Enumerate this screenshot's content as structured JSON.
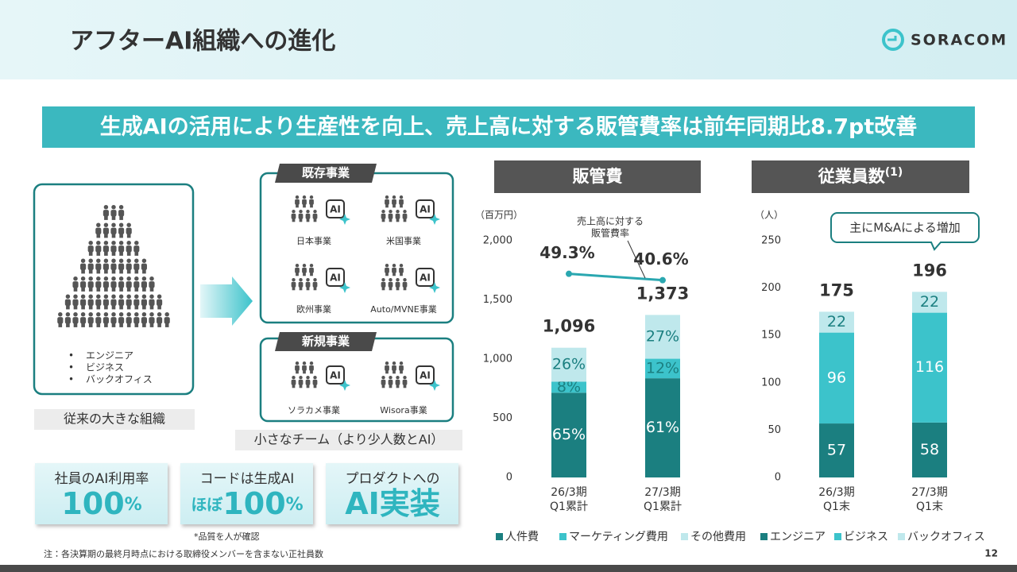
{
  "header": {
    "title": "アフターAI組織への進化",
    "logo": "SORACOM"
  },
  "banner": "生成AIの活用により生産性を向上、売上高に対する販管費率は前年同期比8.7pt改善",
  "legacy_org": {
    "bullets": [
      "エンジニア",
      "ビジネス",
      "バックオフィス"
    ],
    "caption": "従来の大きな組織"
  },
  "new_org": {
    "ai_badge": "AI",
    "existing": {
      "title": "既存事業",
      "units": [
        "日本事業",
        "米国事業",
        "欧州事業",
        "Auto/MVNE事業"
      ]
    },
    "new": {
      "title": "新規事業",
      "units": [
        "ソラカメ事業",
        "Wisora事業"
      ]
    },
    "caption": "小さなチーム（より少人数とAI）"
  },
  "kpis": [
    {
      "label": "社員のAI利用率",
      "value": "100",
      "unit": "%"
    },
    {
      "label": "コードは生成AI",
      "prefix": "ほぼ",
      "value": "100",
      "unit": "%"
    },
    {
      "label": "プロダクトへの",
      "value": "AI実装"
    }
  ],
  "kpi_note": "*品質を人が確認",
  "footnote": "注：各決算期の最終月時点における取締役メンバーを含まない正社員数",
  "page_number": "12",
  "chart_data": [
    {
      "type": "bar",
      "stacked": true,
      "title": "販管費",
      "y_unit": "（百万円）",
      "categories": [
        "26/3期 Q1累計",
        "27/3期 Q1累計"
      ],
      "series": [
        {
          "name": "人件費",
          "color": "#1b7f80",
          "values": [
            716,
            838
          ],
          "value_labels": [
            "65%",
            "61%"
          ]
        },
        {
          "name": "マーケティング費用",
          "color": "#3cc3cb",
          "values": [
            93,
            165
          ],
          "value_labels": [
            "8%",
            "12%"
          ]
        },
        {
          "name": "その他費用",
          "color": "#bfe8ec",
          "values": [
            287,
            370
          ],
          "value_labels": [
            "26%",
            "27%"
          ]
        }
      ],
      "totals": {
        "values": [
          1096,
          1373
        ],
        "value_labels": [
          "1,096",
          "1,373"
        ]
      },
      "ratio": {
        "name_lines": [
          "売上高に対する",
          "販管費率"
        ],
        "values": [
          49.3,
          40.6
        ],
        "value_labels": [
          "49.3%",
          "40.6%"
        ],
        "color": "#2aa7b0"
      },
      "ylim": [
        0,
        2000
      ],
      "yticks": [
        0,
        500,
        {
          "value": 1000,
          "label": "1,000"
        },
        {
          "value": 1500,
          "label": "1,500"
        },
        {
          "value": 2000,
          "label": "2,000"
        }
      ]
    },
    {
      "type": "bar",
      "stacked": true,
      "title": "従業員数",
      "title_note": "(1)",
      "y_unit": "（人）",
      "categories": [
        "26/3期 Q1末",
        "27/3期 Q1末"
      ],
      "series": [
        {
          "name": "エンジニア",
          "color": "#1b7f80",
          "values": [
            57,
            58
          ]
        },
        {
          "name": "ビジネス",
          "color": "#3cc3cb",
          "values": [
            96,
            116
          ]
        },
        {
          "name": "バックオフィス",
          "color": "#bfe8ec",
          "values": [
            22,
            22
          ]
        }
      ],
      "totals": {
        "values": [
          175,
          196
        ]
      },
      "callout": "主にM&Aによる増加",
      "ylim": [
        0,
        250
      ],
      "yticks": [
        0,
        50,
        100,
        150,
        200,
        250
      ]
    }
  ]
}
